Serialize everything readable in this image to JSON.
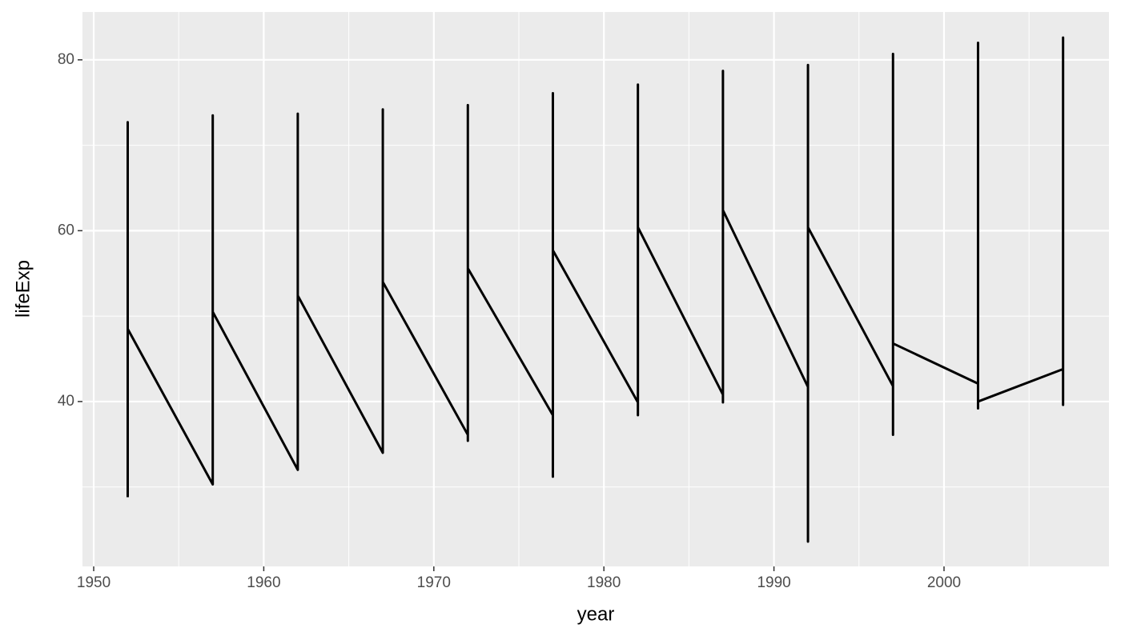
{
  "chart_data": {
    "type": "line",
    "x_label": "year",
    "y_label": "lifeExp",
    "x": [
      1952,
      1952,
      1952,
      1957,
      1957,
      1957,
      1962,
      1962,
      1962,
      1967,
      1967,
      1967,
      1972,
      1972,
      1972,
      1972,
      1977,
      1977,
      1977,
      1977,
      1982,
      1982,
      1982,
      1982,
      1987,
      1987,
      1987,
      1987,
      1992,
      1992,
      1992,
      1992,
      1997,
      1997,
      1997,
      1997,
      2002,
      2002,
      2002,
      2002,
      2007,
      2007,
      2007,
      2007
    ],
    "series": [
      {
        "color": "#000000",
        "values": [
          28.8,
          72.7,
          48.5,
          30.3,
          73.5,
          50.5,
          32.0,
          73.7,
          52.4,
          34.0,
          74.2,
          54.0,
          36.1,
          74.7,
          35.4,
          55.6,
          38.4,
          76.1,
          31.2,
          57.7,
          39.9,
          77.1,
          38.4,
          60.4,
          40.8,
          78.7,
          39.9,
          62.4,
          41.7,
          79.4,
          23.6,
          60.4,
          41.8,
          80.7,
          36.1,
          46.8,
          42.1,
          82.0,
          39.2,
          40.0,
          43.8,
          82.6,
          39.6,
          43.5
        ]
      }
    ],
    "xlim": [
      1949.34,
      2009.7
    ],
    "ylim": [
      20.7,
      85.6
    ],
    "xticks": [
      1950,
      1960,
      1970,
      1980,
      1990,
      2000
    ],
    "yticks": [
      40,
      60,
      80
    ],
    "x_minor_breaks": [
      1955,
      1965,
      1975,
      1985,
      1995,
      2005
    ],
    "y_minor_breaks": [
      30,
      50,
      70
    ],
    "grid": true
  }
}
